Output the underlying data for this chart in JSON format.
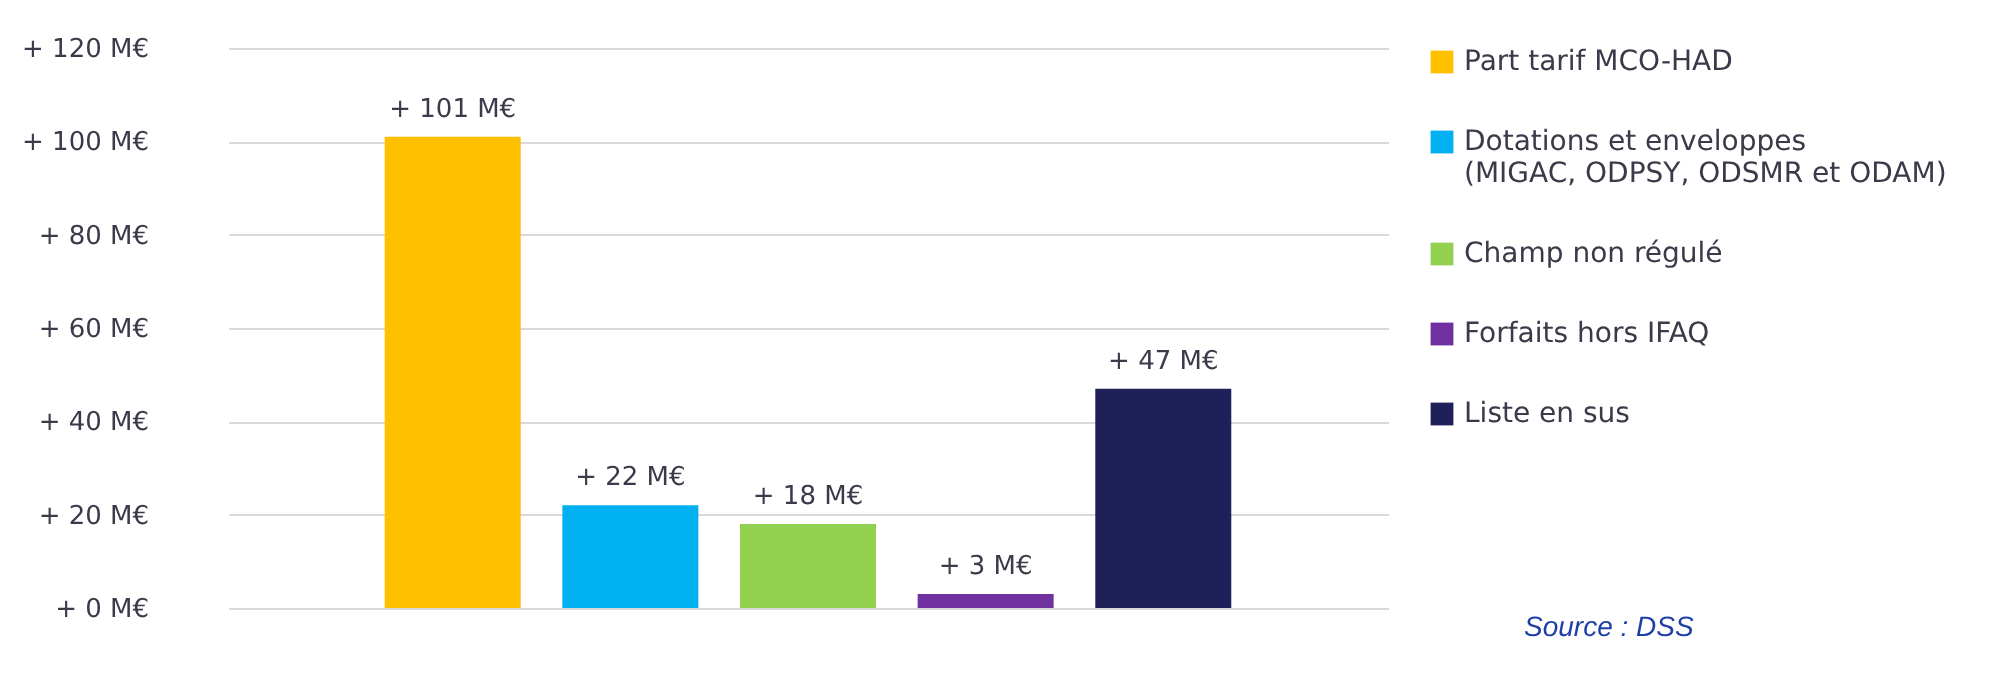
{
  "chart_data": {
    "type": "bar",
    "categories": [
      null,
      null,
      null,
      null,
      null
    ],
    "series": [
      {
        "name": "Part tarif MCO-HAD",
        "color": "#ffc000",
        "values": [
          101,
          null,
          null,
          null,
          null
        ],
        "value_labels": [
          "+ 101 M€",
          null,
          null,
          null,
          null
        ]
      },
      {
        "name": "Dotations et enveloppes\n(MIGAC, ODPSY, ODSMR et ODAM)",
        "color": "#00b0f0",
        "values": [
          null,
          22,
          null,
          null,
          null
        ],
        "value_labels": [
          null,
          "+ 22 M€",
          null,
          null,
          null
        ]
      },
      {
        "name": "Champ non régulé",
        "color": "#92d050",
        "values": [
          null,
          null,
          18,
          null,
          null
        ],
        "value_labels": [
          null,
          null,
          "+ 18 M€",
          null,
          null
        ]
      },
      {
        "name": "Forfaits hors IFAQ",
        "color": "#7030a0",
        "values": [
          null,
          null,
          null,
          3,
          null
        ],
        "value_labels": [
          null,
          null,
          null,
          "+ 3 M€",
          null
        ]
      },
      {
        "name": "Liste en sus",
        "color": "#1f1f5a",
        "values": [
          null,
          null,
          null,
          null,
          47
        ],
        "value_labels": [
          null,
          null,
          null,
          null,
          "+ 47 M€"
        ]
      }
    ],
    "ylim": [
      0,
      120
    ],
    "yticks": [
      {
        "value": 0,
        "label": "+ 0 M€"
      },
      {
        "value": 20,
        "label": "+ 20 M€"
      },
      {
        "value": 40,
        "label": "+ 40 M€"
      },
      {
        "value": 60,
        "label": "+ 60 M€"
      },
      {
        "value": 80,
        "label": "+ 80 M€"
      },
      {
        "value": 100,
        "label": "+ 100 M€"
      },
      {
        "value": 120,
        "label": "+ 120 M€"
      }
    ],
    "grid": "y",
    "legend": "right",
    "annotations": [
      "Source : DSS"
    ]
  }
}
